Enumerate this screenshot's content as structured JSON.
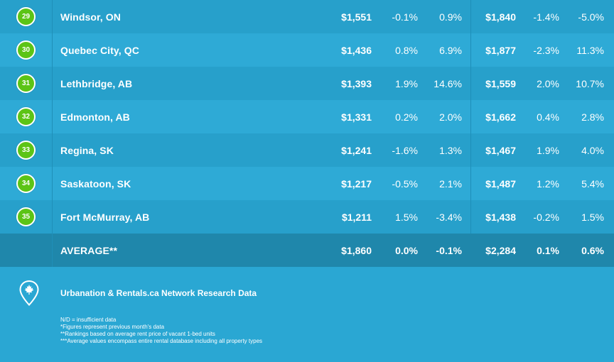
{
  "rows": [
    {
      "rank": "29",
      "city": "Windsor, ON",
      "rent1": "$1,551",
      "mom1": "-0.1%",
      "yoy1": "0.9%",
      "rent2": "$1,840",
      "mom2": "-1.4%",
      "yoy2": "-5.0%"
    },
    {
      "rank": "30",
      "city": "Quebec City, QC",
      "rent1": "$1,436",
      "mom1": "0.8%",
      "yoy1": "6.9%",
      "rent2": "$1,877",
      "mom2": "-2.3%",
      "yoy2": "11.3%"
    },
    {
      "rank": "31",
      "city": "Lethbridge, AB",
      "rent1": "$1,393",
      "mom1": "1.9%",
      "yoy1": "14.6%",
      "rent2": "$1,559",
      "mom2": "2.0%",
      "yoy2": "10.7%"
    },
    {
      "rank": "32",
      "city": "Edmonton, AB",
      "rent1": "$1,331",
      "mom1": "0.2%",
      "yoy1": "2.0%",
      "rent2": "$1,662",
      "mom2": "0.4%",
      "yoy2": "2.8%"
    },
    {
      "rank": "33",
      "city": "Regina, SK",
      "rent1": "$1,241",
      "mom1": "-1.6%",
      "yoy1": "1.3%",
      "rent2": "$1,467",
      "mom2": "1.9%",
      "yoy2": "4.0%"
    },
    {
      "rank": "34",
      "city": "Saskatoon, SK",
      "rent1": "$1,217",
      "mom1": "-0.5%",
      "yoy1": "2.1%",
      "rent2": "$1,487",
      "mom2": "1.2%",
      "yoy2": "5.4%"
    },
    {
      "rank": "35",
      "city": "Fort McMurray, AB",
      "rent1": "$1,211",
      "mom1": "1.5%",
      "yoy1": "-3.4%",
      "rent2": "$1,438",
      "mom2": "-0.2%",
      "yoy2": "1.5%"
    }
  ],
  "average": {
    "label": "AVERAGE**",
    "rent1": "$1,860",
    "mom1": "0.0%",
    "yoy1": "-0.1%",
    "rent2": "$2,284",
    "mom2": "0.1%",
    "yoy2": "0.6%"
  },
  "footer": {
    "icon": "map-pin-maple-leaf-icon",
    "source": "Urbanation & Rentals.ca Network Research Data",
    "notes": [
      "N/D = insufficient data",
      "*Figures represent previous month's data",
      "**Rankings based on average rent price of vacant 1-bed units",
      "***Average values encompass entire rental database including all property types"
    ]
  },
  "colors": {
    "badge": "#5cc416",
    "row_odd": "#27a0cb",
    "row_even": "#2eaad6",
    "average_row": "#1f87ab",
    "background": "#2aa7d3"
  }
}
